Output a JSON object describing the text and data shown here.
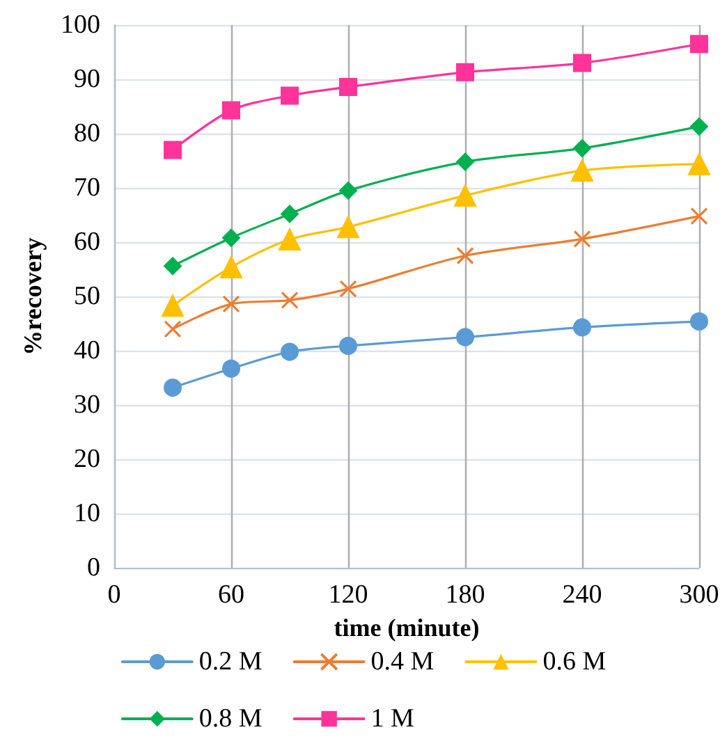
{
  "chart_data": {
    "type": "line",
    "xlabel": "time (minute)",
    "ylabel": "%recovery",
    "x": [
      30,
      60,
      90,
      120,
      180,
      240,
      300
    ],
    "series": [
      {
        "name": "0.2 M",
        "color": "#5b9bd5",
        "marker": "circle",
        "values": [
          33.2,
          36.7,
          39.8,
          40.9,
          42.5,
          44.3,
          45.4
        ]
      },
      {
        "name": "0.4 M",
        "color": "#ed7d31",
        "marker": "cross",
        "values": [
          44,
          48.6,
          49.3,
          51.4,
          57.5,
          60.6,
          64.8
        ]
      },
      {
        "name": "0.6 M",
        "color": "#ffc000",
        "marker": "triangle",
        "values": [
          48.3,
          55.4,
          60.5,
          62.8,
          68.6,
          73.2,
          74.4
        ]
      },
      {
        "name": "0.8 M",
        "color": "#00b050",
        "marker": "diamond",
        "values": [
          55.6,
          60.8,
          65.2,
          69.5,
          74.8,
          77.3,
          81.3
        ]
      },
      {
        "name": "1 M",
        "color": "#ff3399",
        "marker": "square",
        "values": [
          77,
          84.3,
          87,
          88.6,
          91.3,
          93,
          96.5
        ]
      }
    ],
    "xlim": [
      0,
      300
    ],
    "xticks": [
      0,
      60,
      120,
      180,
      240,
      300
    ],
    "ylim": [
      0,
      100
    ],
    "yticks": [
      0,
      10,
      20,
      30,
      40,
      50,
      60,
      70,
      80,
      90,
      100
    ],
    "grid": true,
    "legend": "bottom",
    "line_style": "solid"
  }
}
